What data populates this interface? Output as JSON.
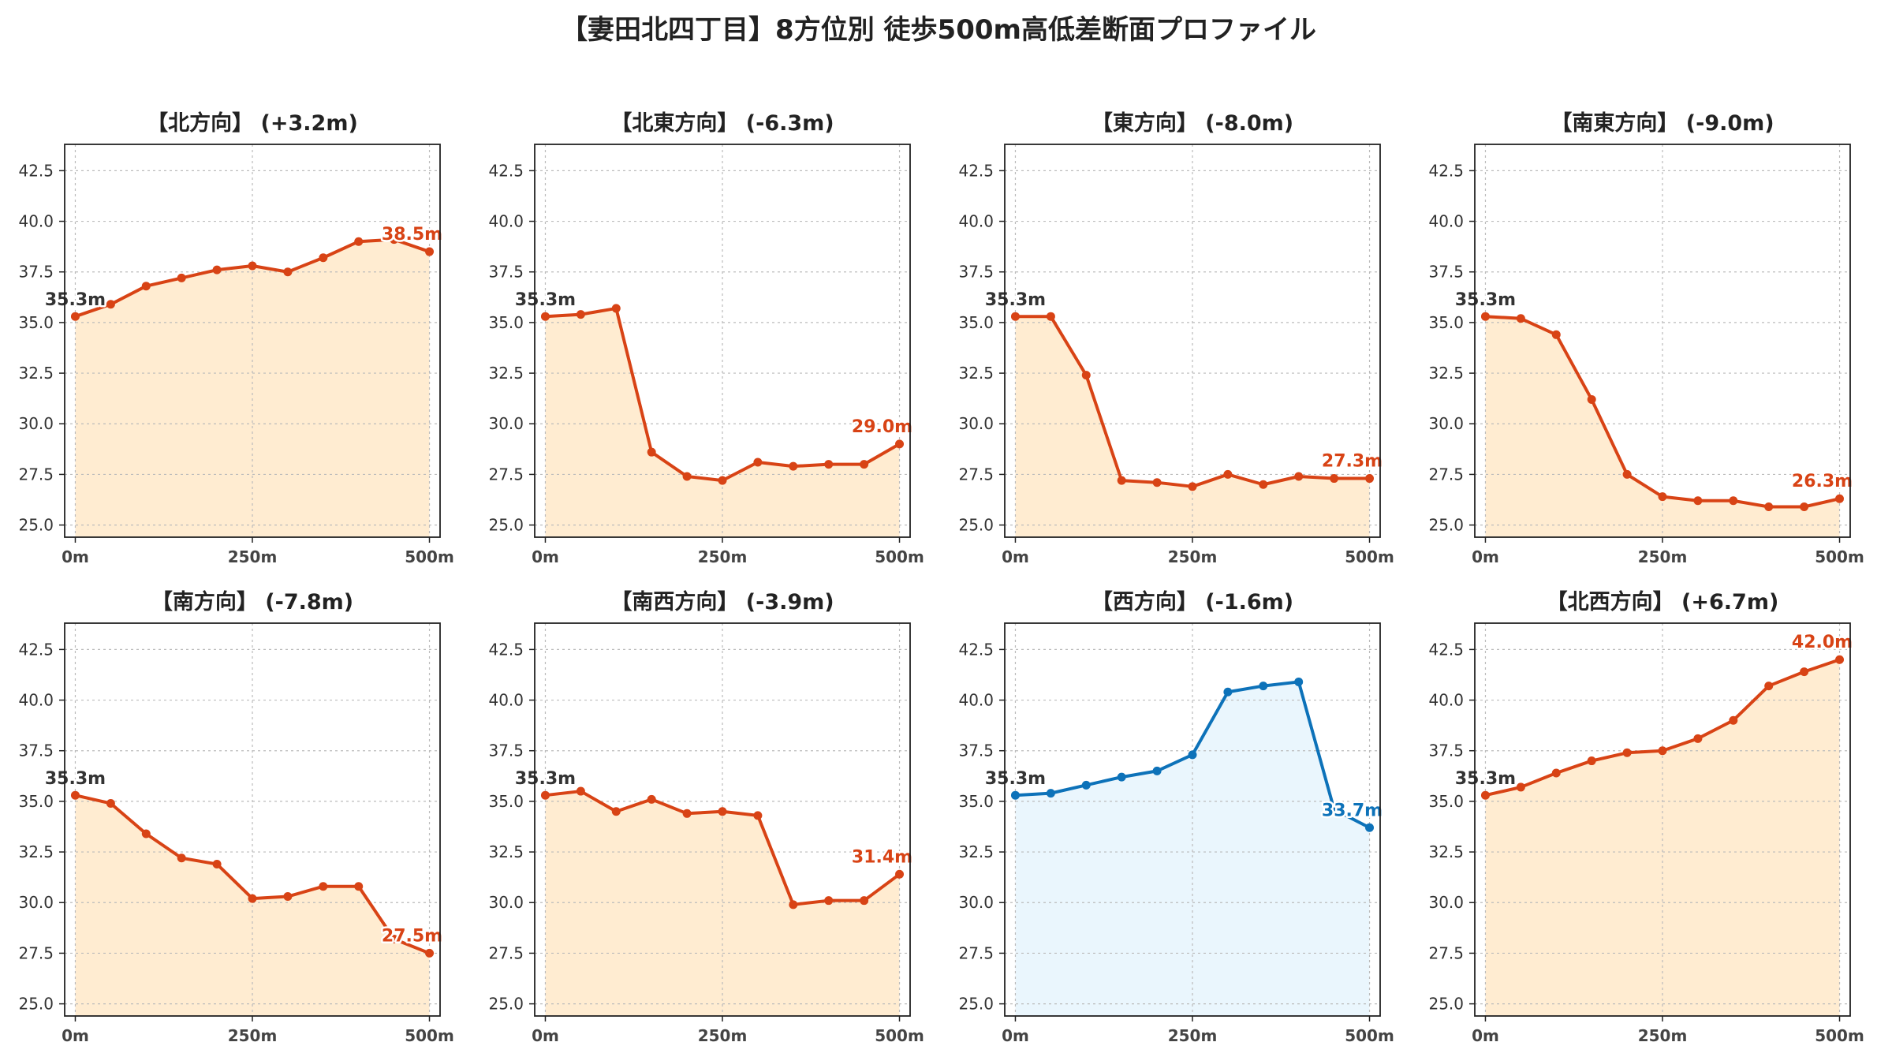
{
  "title": "【妻田北四丁目】8方位別 徒歩500m高低差断面プロファイル",
  "colors": {
    "down_line": "#d84315",
    "down_fill": "#ffecd1",
    "up_line": "#0d72b9",
    "up_fill": "#eaf6fd",
    "start_label": "#333333",
    "grid": "#bbbbbb"
  },
  "chart_data": [
    {
      "type": "line",
      "title": "【北方向】 (+3.2m)",
      "style": "down",
      "x": [
        0,
        50,
        100,
        150,
        200,
        250,
        300,
        350,
        400,
        450,
        500
      ],
      "y": [
        35.3,
        35.9,
        36.8,
        37.2,
        37.6,
        37.8,
        37.5,
        38.2,
        39.0,
        39.1,
        38.5
      ],
      "start_label": "35.3m",
      "end_label": "38.5m",
      "xticks": [
        0,
        250,
        500
      ],
      "xtick_labels": [
        "0m",
        "250m",
        "500m"
      ],
      "yticks": [
        25.0,
        27.5,
        30.0,
        32.5,
        35.0,
        37.5,
        40.0,
        42.5
      ],
      "ytick_labels": [
        "25.0",
        "27.5",
        "30.0",
        "32.5",
        "35.0",
        "37.5",
        "40.0",
        "42.5"
      ],
      "xlim": [
        -15,
        515
      ],
      "ylim": [
        24.4,
        43.8
      ],
      "grid": true
    },
    {
      "type": "line",
      "title": "【北東方向】 (-6.3m)",
      "style": "down",
      "x": [
        0,
        50,
        100,
        150,
        200,
        250,
        300,
        350,
        400,
        450,
        500
      ],
      "y": [
        35.3,
        35.4,
        35.7,
        28.6,
        27.4,
        27.2,
        28.1,
        27.9,
        28.0,
        28.0,
        29.0
      ],
      "start_label": "35.3m",
      "end_label": "29.0m",
      "xticks": [
        0,
        250,
        500
      ],
      "xtick_labels": [
        "0m",
        "250m",
        "500m"
      ],
      "yticks": [
        25.0,
        27.5,
        30.0,
        32.5,
        35.0,
        37.5,
        40.0,
        42.5
      ],
      "ytick_labels": [
        "25.0",
        "27.5",
        "30.0",
        "32.5",
        "35.0",
        "37.5",
        "40.0",
        "42.5"
      ],
      "xlim": [
        -15,
        515
      ],
      "ylim": [
        24.4,
        43.8
      ],
      "grid": true
    },
    {
      "type": "line",
      "title": "【東方向】 (-8.0m)",
      "style": "down",
      "x": [
        0,
        50,
        100,
        150,
        200,
        250,
        300,
        350,
        400,
        450,
        500
      ],
      "y": [
        35.3,
        35.3,
        32.4,
        27.2,
        27.1,
        26.9,
        27.5,
        27.0,
        27.4,
        27.3,
        27.3
      ],
      "start_label": "35.3m",
      "end_label": "27.3m",
      "xticks": [
        0,
        250,
        500
      ],
      "xtick_labels": [
        "0m",
        "250m",
        "500m"
      ],
      "yticks": [
        25.0,
        27.5,
        30.0,
        32.5,
        35.0,
        37.5,
        40.0,
        42.5
      ],
      "ytick_labels": [
        "25.0",
        "27.5",
        "30.0",
        "32.5",
        "35.0",
        "37.5",
        "40.0",
        "42.5"
      ],
      "xlim": [
        -15,
        515
      ],
      "ylim": [
        24.4,
        43.8
      ],
      "grid": true
    },
    {
      "type": "line",
      "title": "【南東方向】 (-9.0m)",
      "style": "down",
      "x": [
        0,
        50,
        100,
        150,
        200,
        250,
        300,
        350,
        400,
        450,
        500
      ],
      "y": [
        35.3,
        35.2,
        34.4,
        31.2,
        27.5,
        26.4,
        26.2,
        26.2,
        25.9,
        25.9,
        26.3
      ],
      "start_label": "35.3m",
      "end_label": "26.3m",
      "xticks": [
        0,
        250,
        500
      ],
      "xtick_labels": [
        "0m",
        "250m",
        "500m"
      ],
      "yticks": [
        25.0,
        27.5,
        30.0,
        32.5,
        35.0,
        37.5,
        40.0,
        42.5
      ],
      "ytick_labels": [
        "25.0",
        "27.5",
        "30.0",
        "32.5",
        "35.0",
        "37.5",
        "40.0",
        "42.5"
      ],
      "xlim": [
        -15,
        515
      ],
      "ylim": [
        24.4,
        43.8
      ],
      "grid": true
    },
    {
      "type": "line",
      "title": "【南方向】 (-7.8m)",
      "style": "down",
      "x": [
        0,
        50,
        100,
        150,
        200,
        250,
        300,
        350,
        400,
        450,
        500
      ],
      "y": [
        35.3,
        34.9,
        33.4,
        32.2,
        31.9,
        30.2,
        30.3,
        30.8,
        30.8,
        28.2,
        27.5
      ],
      "start_label": "35.3m",
      "end_label": "27.5m",
      "xticks": [
        0,
        250,
        500
      ],
      "xtick_labels": [
        "0m",
        "250m",
        "500m"
      ],
      "yticks": [
        25.0,
        27.5,
        30.0,
        32.5,
        35.0,
        37.5,
        40.0,
        42.5
      ],
      "ytick_labels": [
        "25.0",
        "27.5",
        "30.0",
        "32.5",
        "35.0",
        "37.5",
        "40.0",
        "42.5"
      ],
      "xlim": [
        -15,
        515
      ],
      "ylim": [
        24.4,
        43.8
      ],
      "grid": true
    },
    {
      "type": "line",
      "title": "【南西方向】 (-3.9m)",
      "style": "down",
      "x": [
        0,
        50,
        100,
        150,
        200,
        250,
        300,
        350,
        400,
        450,
        500
      ],
      "y": [
        35.3,
        35.5,
        34.5,
        35.1,
        34.4,
        34.5,
        34.3,
        29.9,
        30.1,
        30.1,
        31.4
      ],
      "start_label": "35.3m",
      "end_label": "31.4m",
      "xticks": [
        0,
        250,
        500
      ],
      "xtick_labels": [
        "0m",
        "250m",
        "500m"
      ],
      "yticks": [
        25.0,
        27.5,
        30.0,
        32.5,
        35.0,
        37.5,
        40.0,
        42.5
      ],
      "ytick_labels": [
        "25.0",
        "27.5",
        "30.0",
        "32.5",
        "35.0",
        "37.5",
        "40.0",
        "42.5"
      ],
      "xlim": [
        -15,
        515
      ],
      "ylim": [
        24.4,
        43.8
      ],
      "grid": true
    },
    {
      "type": "line",
      "title": "【西方向】 (-1.6m)",
      "style": "up",
      "x": [
        0,
        50,
        100,
        150,
        200,
        250,
        300,
        350,
        400,
        450,
        500
      ],
      "y": [
        35.3,
        35.4,
        35.8,
        36.2,
        36.5,
        37.3,
        40.4,
        40.7,
        40.9,
        34.6,
        33.7
      ],
      "start_label": "35.3m",
      "end_label": "33.7m",
      "xticks": [
        0,
        250,
        500
      ],
      "xtick_labels": [
        "0m",
        "250m",
        "500m"
      ],
      "yticks": [
        25.0,
        27.5,
        30.0,
        32.5,
        35.0,
        37.5,
        40.0,
        42.5
      ],
      "ytick_labels": [
        "25.0",
        "27.5",
        "30.0",
        "32.5",
        "35.0",
        "37.5",
        "40.0",
        "42.5"
      ],
      "xlim": [
        -15,
        515
      ],
      "ylim": [
        24.4,
        43.8
      ],
      "grid": true
    },
    {
      "type": "line",
      "title": "【北西方向】 (+6.7m)",
      "style": "down",
      "x": [
        0,
        50,
        100,
        150,
        200,
        250,
        300,
        350,
        400,
        450,
        500
      ],
      "y": [
        35.3,
        35.7,
        36.4,
        37.0,
        37.4,
        37.5,
        38.1,
        39.0,
        40.7,
        41.4,
        42.0
      ],
      "start_label": "35.3m",
      "end_label": "42.0m",
      "xticks": [
        0,
        250,
        500
      ],
      "xtick_labels": [
        "0m",
        "250m",
        "500m"
      ],
      "yticks": [
        25.0,
        27.5,
        30.0,
        32.5,
        35.0,
        37.5,
        40.0,
        42.5
      ],
      "ytick_labels": [
        "25.0",
        "27.5",
        "30.0",
        "32.5",
        "35.0",
        "37.5",
        "40.0",
        "42.5"
      ],
      "xlim": [
        -15,
        515
      ],
      "ylim": [
        24.4,
        43.8
      ],
      "grid": true
    }
  ]
}
